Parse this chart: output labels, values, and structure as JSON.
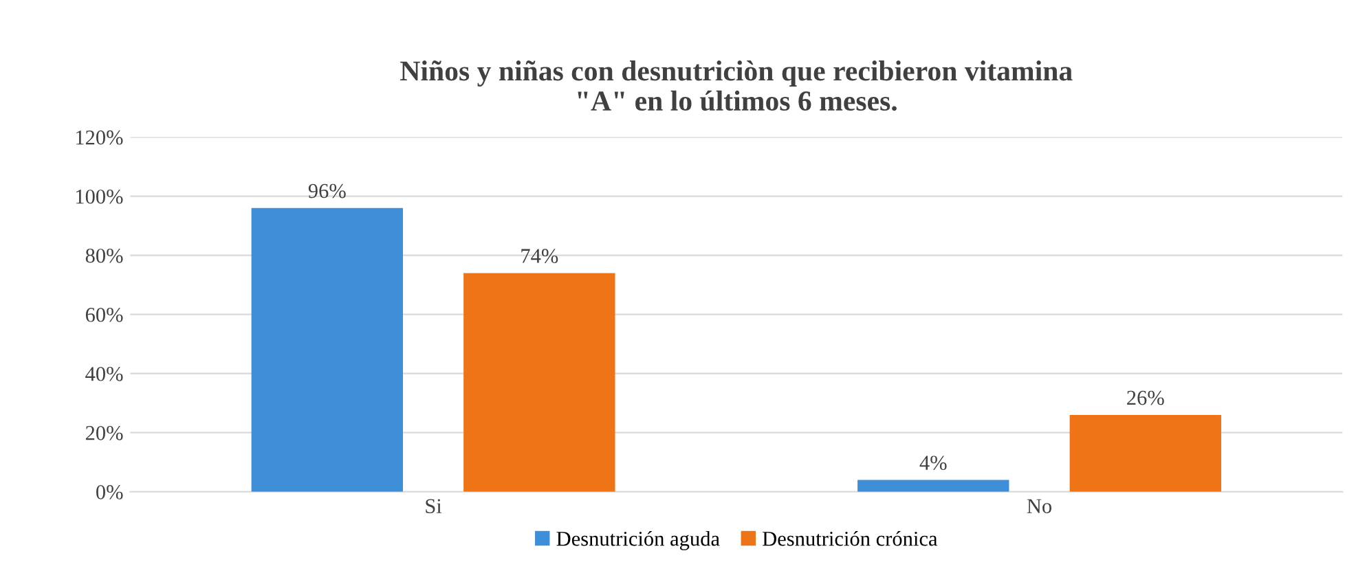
{
  "chart_data": {
    "type": "bar",
    "title": "Niños y niñas con desnutriciòn que recibieron vitamina\n\"A\" en lo últimos 6 meses.",
    "categories": [
      "Si",
      "No"
    ],
    "series": [
      {
        "name": "Desnutrición aguda",
        "color": "#3f8fd8",
        "values": [
          96,
          4
        ],
        "value_labels": [
          "96%",
          "4%"
        ]
      },
      {
        "name": "Desnutrición crónica",
        "color": "#ee7416",
        "values": [
          74,
          26
        ],
        "value_labels": [
          "74%",
          "26%"
        ]
      }
    ],
    "ylim": [
      0,
      120
    ],
    "yticks": [
      {
        "value": 0,
        "label": "0%"
      },
      {
        "value": 20,
        "label": "20%"
      },
      {
        "value": 40,
        "label": "40%"
      },
      {
        "value": 60,
        "label": "60%"
      },
      {
        "value": 80,
        "label": "80%"
      },
      {
        "value": 100,
        "label": "100%"
      },
      {
        "value": 120,
        "label": "120%"
      }
    ],
    "grid": "y",
    "legend": "bottom"
  }
}
